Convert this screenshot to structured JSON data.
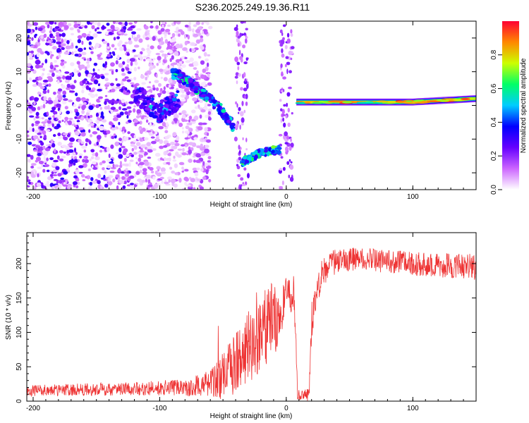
{
  "title": "S236.2025.249.19.36.R11",
  "chart_data": [
    {
      "type": "heatmap",
      "xlabel": "Height of straight line (km)",
      "ylabel": "Frequency (Hz)",
      "xlim": [
        -205,
        150
      ],
      "ylim": [
        -25,
        25
      ],
      "xticks": [
        -200,
        -100,
        0,
        100
      ],
      "yticks": [
        -20,
        -10,
        0,
        10,
        20
      ],
      "colorbar": {
        "label": "Normalized spectral amplitude",
        "range": [
          0,
          1
        ],
        "ticks": [
          0,
          0.2,
          0.4,
          0.6,
          0.8
        ],
        "tick_labels": [
          "0.0",
          "0.2",
          "0.4",
          "0.6",
          "0.8"
        ],
        "colors": [
          "#ffffff",
          "#cc66ff",
          "#6600ff",
          "#0000ff",
          "#00ccff",
          "#00ff66",
          "#ccff00",
          "#ff8800",
          "#ff0033"
        ]
      },
      "features": [
        {
          "name": "noise",
          "x_range": [
            -205,
            -60
          ],
          "f_range": [
            -25,
            25
          ],
          "level": 0.15
        },
        {
          "name": "band",
          "points": [
            [
              -120,
              4
            ],
            [
              -100,
              -2
            ],
            [
              -85,
              2
            ]
          ],
          "level": 0.3
        },
        {
          "name": "ridge",
          "points": [
            [
              -90,
              10
            ],
            [
              -70,
              5
            ],
            [
              -55,
              0
            ],
            [
              -42,
              -6
            ]
          ],
          "level": 0.35
        },
        {
          "name": "segment",
          "points": [
            [
              -35,
              -17
            ],
            [
              -20,
              -14
            ],
            [
              -5,
              -13
            ]
          ],
          "level": 0.45
        },
        {
          "name": "line",
          "points": [
            [
              8,
              1
            ],
            [
              100,
              1
            ],
            [
              150,
              2
            ]
          ],
          "level": 0.95
        }
      ]
    },
    {
      "type": "line",
      "xlabel": "Height of straight line (km)",
      "ylabel": "SNR (10 * v/v)",
      "xlim": [
        -205,
        150
      ],
      "ylim": [
        0,
        245
      ],
      "xticks": [
        -200,
        -100,
        0,
        100
      ],
      "yticks": [
        0,
        50,
        100,
        150,
        200
      ],
      "series_color": "#ee3333",
      "x": [
        -205,
        -160,
        -120,
        -80,
        -60,
        -50,
        -40,
        -30,
        -20,
        -10,
        0,
        6,
        9,
        14,
        18,
        20,
        25,
        30,
        40,
        60,
        80,
        100,
        120,
        150
      ],
      "mean": [
        15,
        17,
        18,
        20,
        25,
        35,
        55,
        75,
        95,
        120,
        145,
        165,
        10,
        8,
        10,
        130,
        170,
        190,
        205,
        207,
        203,
        200,
        198,
        195
      ],
      "amp": [
        8,
        9,
        10,
        12,
        20,
        35,
        45,
        55,
        60,
        55,
        40,
        25,
        8,
        8,
        10,
        40,
        25,
        20,
        18,
        17,
        17,
        17,
        18,
        20
      ]
    }
  ]
}
